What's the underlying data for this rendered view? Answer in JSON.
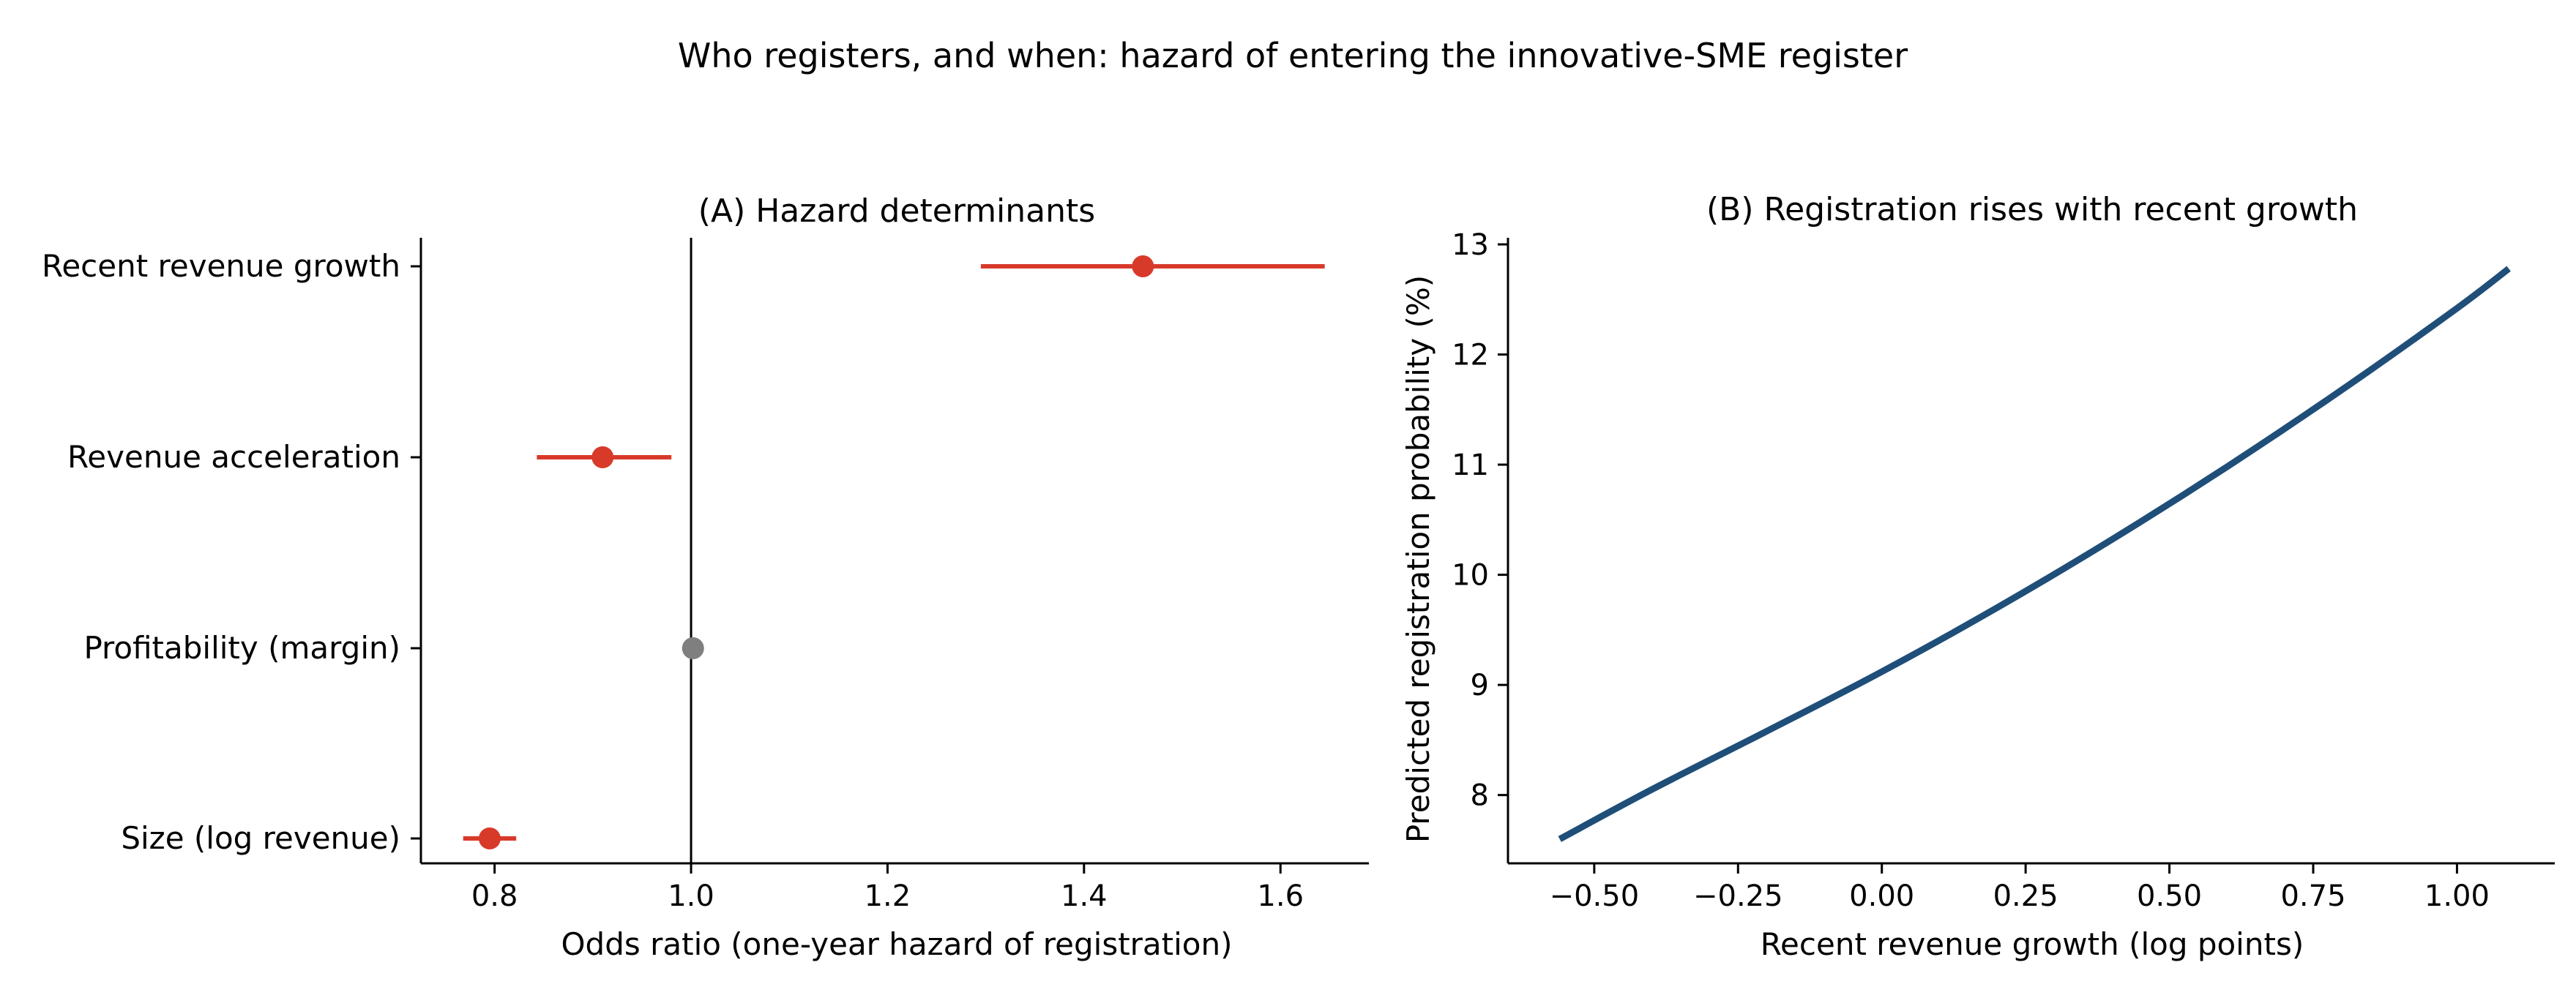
{
  "figure": {
    "title": "Who registers, and when: hazard of entering the innovative-SME register"
  },
  "chart_data": [
    {
      "type": "scatter",
      "title": "(A) Hazard determinants",
      "xlabel": "Odds ratio (one-year hazard of registration)",
      "ylabel": "",
      "xlim": [
        0.725,
        1.69
      ],
      "xticks": [
        0.8,
        1.0,
        1.2,
        1.4,
        1.6
      ],
      "xtick_labels": [
        "0.8",
        "1.0",
        "1.2",
        "1.4",
        "1.6"
      ],
      "reference_line": 1.0,
      "grid": false,
      "legend": "none",
      "categories": [
        "Recent revenue growth",
        "Revenue acceleration",
        "Profitability (margin)",
        "Size (log revenue)"
      ],
      "estimates": [
        {
          "label": "Recent revenue growth",
          "or": 1.46,
          "ci_low": 1.295,
          "ci_high": 1.645,
          "significant": true
        },
        {
          "label": "Revenue acceleration",
          "or": 0.91,
          "ci_low": 0.843,
          "ci_high": 0.98,
          "significant": true
        },
        {
          "label": "Profitability (margin)",
          "or": 1.002,
          "ci_low": 0.997,
          "ci_high": 1.007,
          "significant": false
        },
        {
          "label": "Size (log revenue)",
          "or": 0.795,
          "ci_low": 0.768,
          "ci_high": 0.822,
          "significant": true
        }
      ],
      "colors": {
        "significant": "#d83a2a",
        "not_significant": "#7f7f7f",
        "reference": "#000000"
      }
    },
    {
      "type": "line",
      "title": "(B) Registration rises with recent growth",
      "xlabel": "Recent revenue growth (log points)",
      "ylabel": "Predicted registration probability (%)",
      "xlim": [
        -0.65,
        1.17
      ],
      "ylim": [
        7.38,
        13.06
      ],
      "xticks": [
        -0.5,
        -0.25,
        0.0,
        0.25,
        0.5,
        0.75,
        1.0
      ],
      "xtick_labels": [
        "−0.50",
        "−0.25",
        "0.00",
        "0.25",
        "0.50",
        "0.75",
        "1.00"
      ],
      "yticks": [
        8,
        9,
        10,
        11,
        12,
        13
      ],
      "ytick_labels": [
        "8",
        "9",
        "10",
        "11",
        "12",
        "13"
      ],
      "grid": false,
      "legend": "none",
      "series": [
        {
          "x": [
            -0.56,
            -0.4,
            -0.2,
            0.0,
            0.2,
            0.4,
            0.6,
            0.8,
            1.0,
            1.09
          ],
          "y": [
            7.6,
            8.05,
            8.58,
            9.12,
            9.7,
            10.32,
            10.98,
            11.68,
            12.42,
            12.78
          ],
          "color": "#1f4e79"
        }
      ]
    }
  ]
}
